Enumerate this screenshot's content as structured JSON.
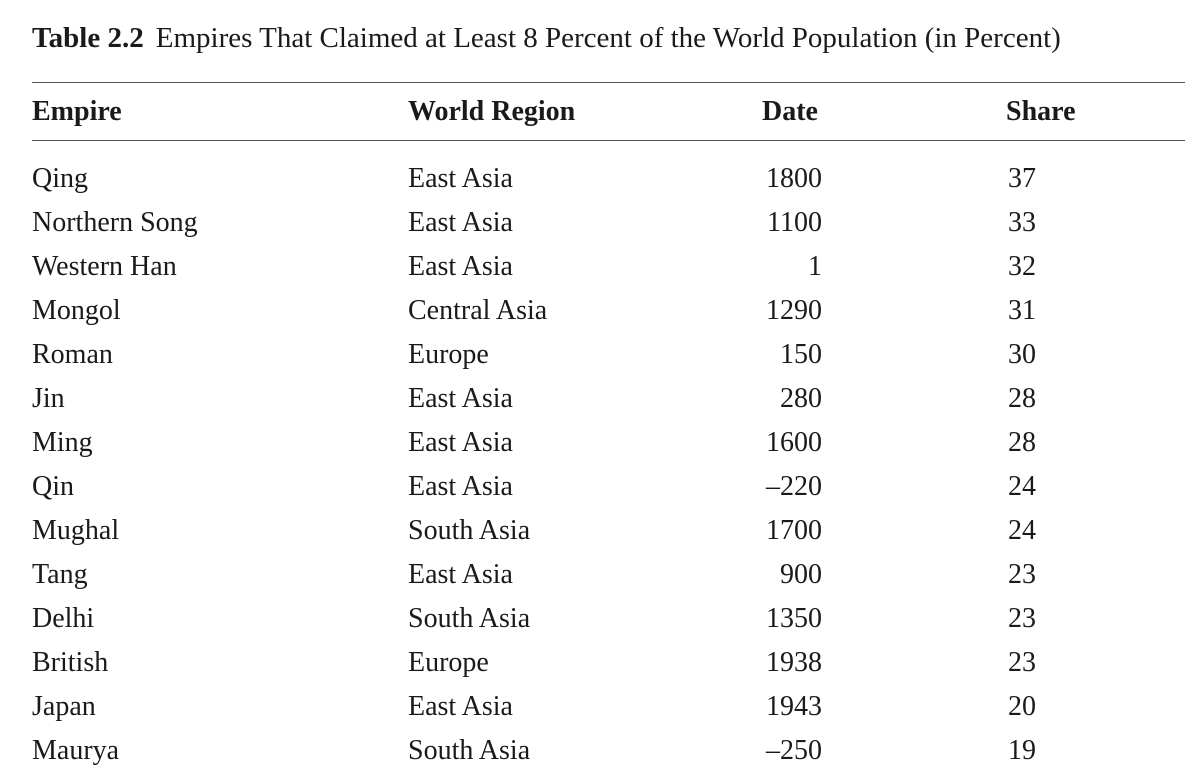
{
  "header": {
    "label": "Table 2.2",
    "title": "Empires That Claimed at Least 8 Percent of the World Population (in Percent)"
  },
  "table": {
    "columns": [
      "Empire",
      "World Region",
      "Date",
      "Share"
    ],
    "rows": [
      [
        "Qing",
        "East Asia",
        "1800",
        "37"
      ],
      [
        "Northern Song",
        "East Asia",
        "1100",
        "33"
      ],
      [
        "Western Han",
        "East Asia",
        "1",
        "32"
      ],
      [
        "Mongol",
        "Central Asia",
        "1290",
        "31"
      ],
      [
        "Roman",
        "Europe",
        "150",
        "30"
      ],
      [
        "Jin",
        "East Asia",
        "280",
        "28"
      ],
      [
        "Ming",
        "East Asia",
        "1600",
        "28"
      ],
      [
        "Qin",
        "East Asia",
        "–220",
        "24"
      ],
      [
        "Mughal",
        "South Asia",
        "1700",
        "24"
      ],
      [
        "Tang",
        "East Asia",
        "900",
        "23"
      ],
      [
        "Delhi",
        "South Asia",
        "1350",
        "23"
      ],
      [
        "British",
        "Europe",
        "1938",
        "23"
      ],
      [
        "Japan",
        "East Asia",
        "1943",
        "20"
      ],
      [
        "Maurya",
        "South Asia",
        "–250",
        "19"
      ]
    ]
  }
}
